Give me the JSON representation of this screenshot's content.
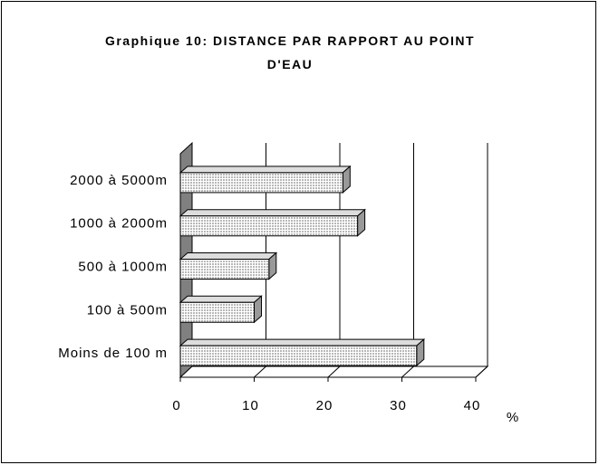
{
  "chart_data": {
    "type": "bar",
    "orientation": "horizontal",
    "title": "Graphique 10: DISTANCE PAR RAPPORT AU POINT D'EAU",
    "x_label": "%",
    "categories": [
      "Moins de 100 m",
      "100 à 500m",
      "500 à 1000m",
      "1000 à 2000m",
      "2000 à 5000m"
    ],
    "values": [
      32,
      10,
      12,
      24,
      22
    ],
    "color": "#b8b8b8",
    "xlim": [
      0,
      40
    ],
    "xticks": [
      0,
      10,
      20,
      30,
      40
    ],
    "grid": true
  }
}
